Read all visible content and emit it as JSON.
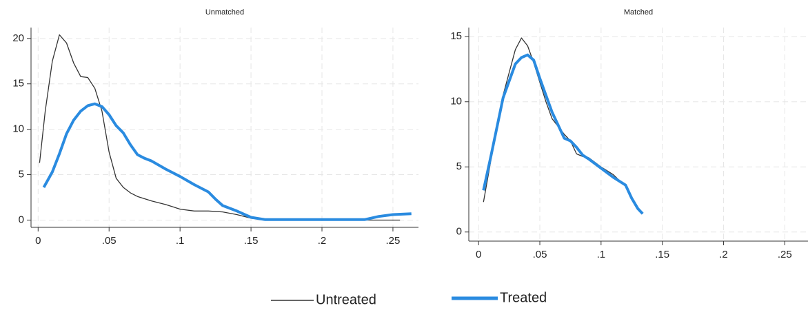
{
  "chart_data": [
    {
      "type": "line",
      "title": "Unmatched",
      "xlim": [
        -0.005,
        0.268
      ],
      "ylim": [
        -0.8,
        21.2
      ],
      "xticks": [
        0,
        {
          "value": 0.05,
          "label": ".05"
        },
        {
          "value": 0.1,
          "label": ".1"
        },
        {
          "value": 0.15,
          "label": ".15"
        },
        {
          "value": 0.2,
          "label": ".2"
        },
        {
          "value": 0.25,
          "label": ".25"
        }
      ],
      "yticks": [
        0,
        5,
        10,
        15,
        20
      ],
      "grid": true,
      "series": [
        {
          "name": "Untreated",
          "color": "#333333",
          "x": [
            0.001,
            0.005,
            0.01,
            0.015,
            0.02,
            0.025,
            0.03,
            0.035,
            0.04,
            0.045,
            0.05,
            0.055,
            0.06,
            0.065,
            0.07,
            0.08,
            0.09,
            0.1,
            0.11,
            0.12,
            0.13,
            0.14,
            0.15,
            0.16,
            0.18,
            0.2,
            0.22,
            0.24,
            0.255
          ],
          "values": [
            6.3,
            12,
            17.5,
            20.4,
            19.5,
            17.3,
            15.8,
            15.7,
            14.5,
            12,
            7.5,
            4.6,
            3.6,
            3,
            2.6,
            2.1,
            1.7,
            1.2,
            1.0,
            1.0,
            0.9,
            0.6,
            0.2,
            0.05,
            0,
            0,
            0,
            0,
            0
          ]
        },
        {
          "name": "Treated",
          "color": "#2a8be0",
          "x": [
            0.004,
            0.01,
            0.015,
            0.02,
            0.025,
            0.03,
            0.035,
            0.04,
            0.045,
            0.05,
            0.055,
            0.06,
            0.065,
            0.07,
            0.075,
            0.08,
            0.09,
            0.1,
            0.11,
            0.12,
            0.125,
            0.13,
            0.14,
            0.15,
            0.16,
            0.18,
            0.2,
            0.22,
            0.23,
            0.24,
            0.25,
            0.263
          ],
          "values": [
            3.6,
            5.3,
            7.3,
            9.5,
            11,
            12,
            12.6,
            12.8,
            12.5,
            11.6,
            10.4,
            9.6,
            8.3,
            7.2,
            6.8,
            6.5,
            5.6,
            4.8,
            3.9,
            3.1,
            2.3,
            1.6,
            1.0,
            0.3,
            0.05,
            0.05,
            0.05,
            0.05,
            0.05,
            0.4,
            0.6,
            0.7
          ]
        }
      ]
    },
    {
      "type": "line",
      "title": "Matched",
      "xlim": [
        -0.008,
        0.269
      ],
      "ylim": [
        -0.7,
        15.7
      ],
      "xticks": [
        0,
        {
          "value": 0.05,
          "label": ".05"
        },
        {
          "value": 0.1,
          "label": ".1"
        },
        {
          "value": 0.15,
          "label": ".15"
        },
        {
          "value": 0.2,
          "label": ".2"
        },
        {
          "value": 0.25,
          "label": ".25"
        }
      ],
      "yticks": [
        0,
        5,
        10,
        15
      ],
      "grid": true,
      "series": [
        {
          "color": "#333333",
          "x": [
            0.004,
            0.01,
            0.02,
            0.03,
            0.035,
            0.04,
            0.045,
            0.05,
            0.055,
            0.06,
            0.065,
            0.07,
            0.075,
            0.08,
            0.085,
            0.09,
            0.1,
            0.11,
            0.12,
            0.125,
            0.13,
            0.134
          ],
          "values": [
            2.3,
            5.5,
            10.5,
            14,
            14.9,
            14.3,
            13,
            11.5,
            10,
            8.7,
            8.1,
            7.5,
            7.0,
            6.0,
            5.8,
            5.7,
            5.0,
            4.4,
            3.5,
            2.5,
            1.8,
            1.4
          ]
        },
        {
          "color": "#2a8be0",
          "x": [
            0.004,
            0.01,
            0.02,
            0.03,
            0.035,
            0.04,
            0.045,
            0.05,
            0.055,
            0.06,
            0.065,
            0.07,
            0.075,
            0.08,
            0.085,
            0.09,
            0.1,
            0.11,
            0.12,
            0.125,
            0.13,
            0.134
          ],
          "values": [
            3.2,
            5.8,
            10.3,
            12.9,
            13.4,
            13.6,
            13.2,
            11.8,
            10.5,
            9.2,
            8.2,
            7.2,
            7.0,
            6.5,
            5.9,
            5.6,
            4.9,
            4.2,
            3.6,
            2.6,
            1.8,
            1.4
          ]
        }
      ]
    }
  ]
}
